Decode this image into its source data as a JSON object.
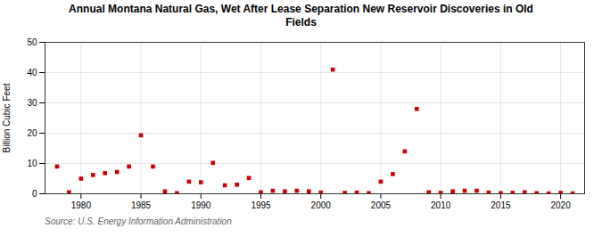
{
  "chart_data": {
    "type": "scatter",
    "title": "Annual Montana Natural Gas, Wet After Lease Separation New Reservoir Discoveries in Old\nFields",
    "ylabel": "Billion Cubic Feet",
    "source": "Source: U.S. Energy Information Administration",
    "x": [
      1978,
      1979,
      1980,
      1981,
      1982,
      1983,
      1984,
      1985,
      1986,
      1987,
      1988,
      1989,
      1990,
      1991,
      1992,
      1993,
      1994,
      1995,
      1996,
      1997,
      1998,
      1999,
      2000,
      2001,
      2002,
      2003,
      2004,
      2005,
      2006,
      2007,
      2008,
      2009,
      2010,
      2011,
      2012,
      2013,
      2014,
      2015,
      2016,
      2017,
      2018,
      2019,
      2020,
      2021
    ],
    "values": [
      9.0,
      0.5,
      5.0,
      6.2,
      6.8,
      7.2,
      9.0,
      19.3,
      9.0,
      0.8,
      0.2,
      4.0,
      3.8,
      10.2,
      2.8,
      3.0,
      5.2,
      0.5,
      1.0,
      0.8,
      1.0,
      0.8,
      0.4,
      41.0,
      0.3,
      0.4,
      0.2,
      4.0,
      6.5,
      14.0,
      28.0,
      0.5,
      0.3,
      0.8,
      1.0,
      1.0,
      0.4,
      0.2,
      0.3,
      0.5,
      0.2,
      0.1,
      0.3,
      0.1
    ],
    "color": "#cc0000",
    "marker": "square",
    "xlim": [
      1977,
      2022
    ],
    "xticks": [
      1980,
      1985,
      1990,
      1995,
      2000,
      2005,
      2010,
      2015,
      2020
    ],
    "ylim": [
      0,
      50
    ],
    "yticks": [
      0,
      10,
      20,
      30,
      40,
      50
    ],
    "grid": true
  }
}
